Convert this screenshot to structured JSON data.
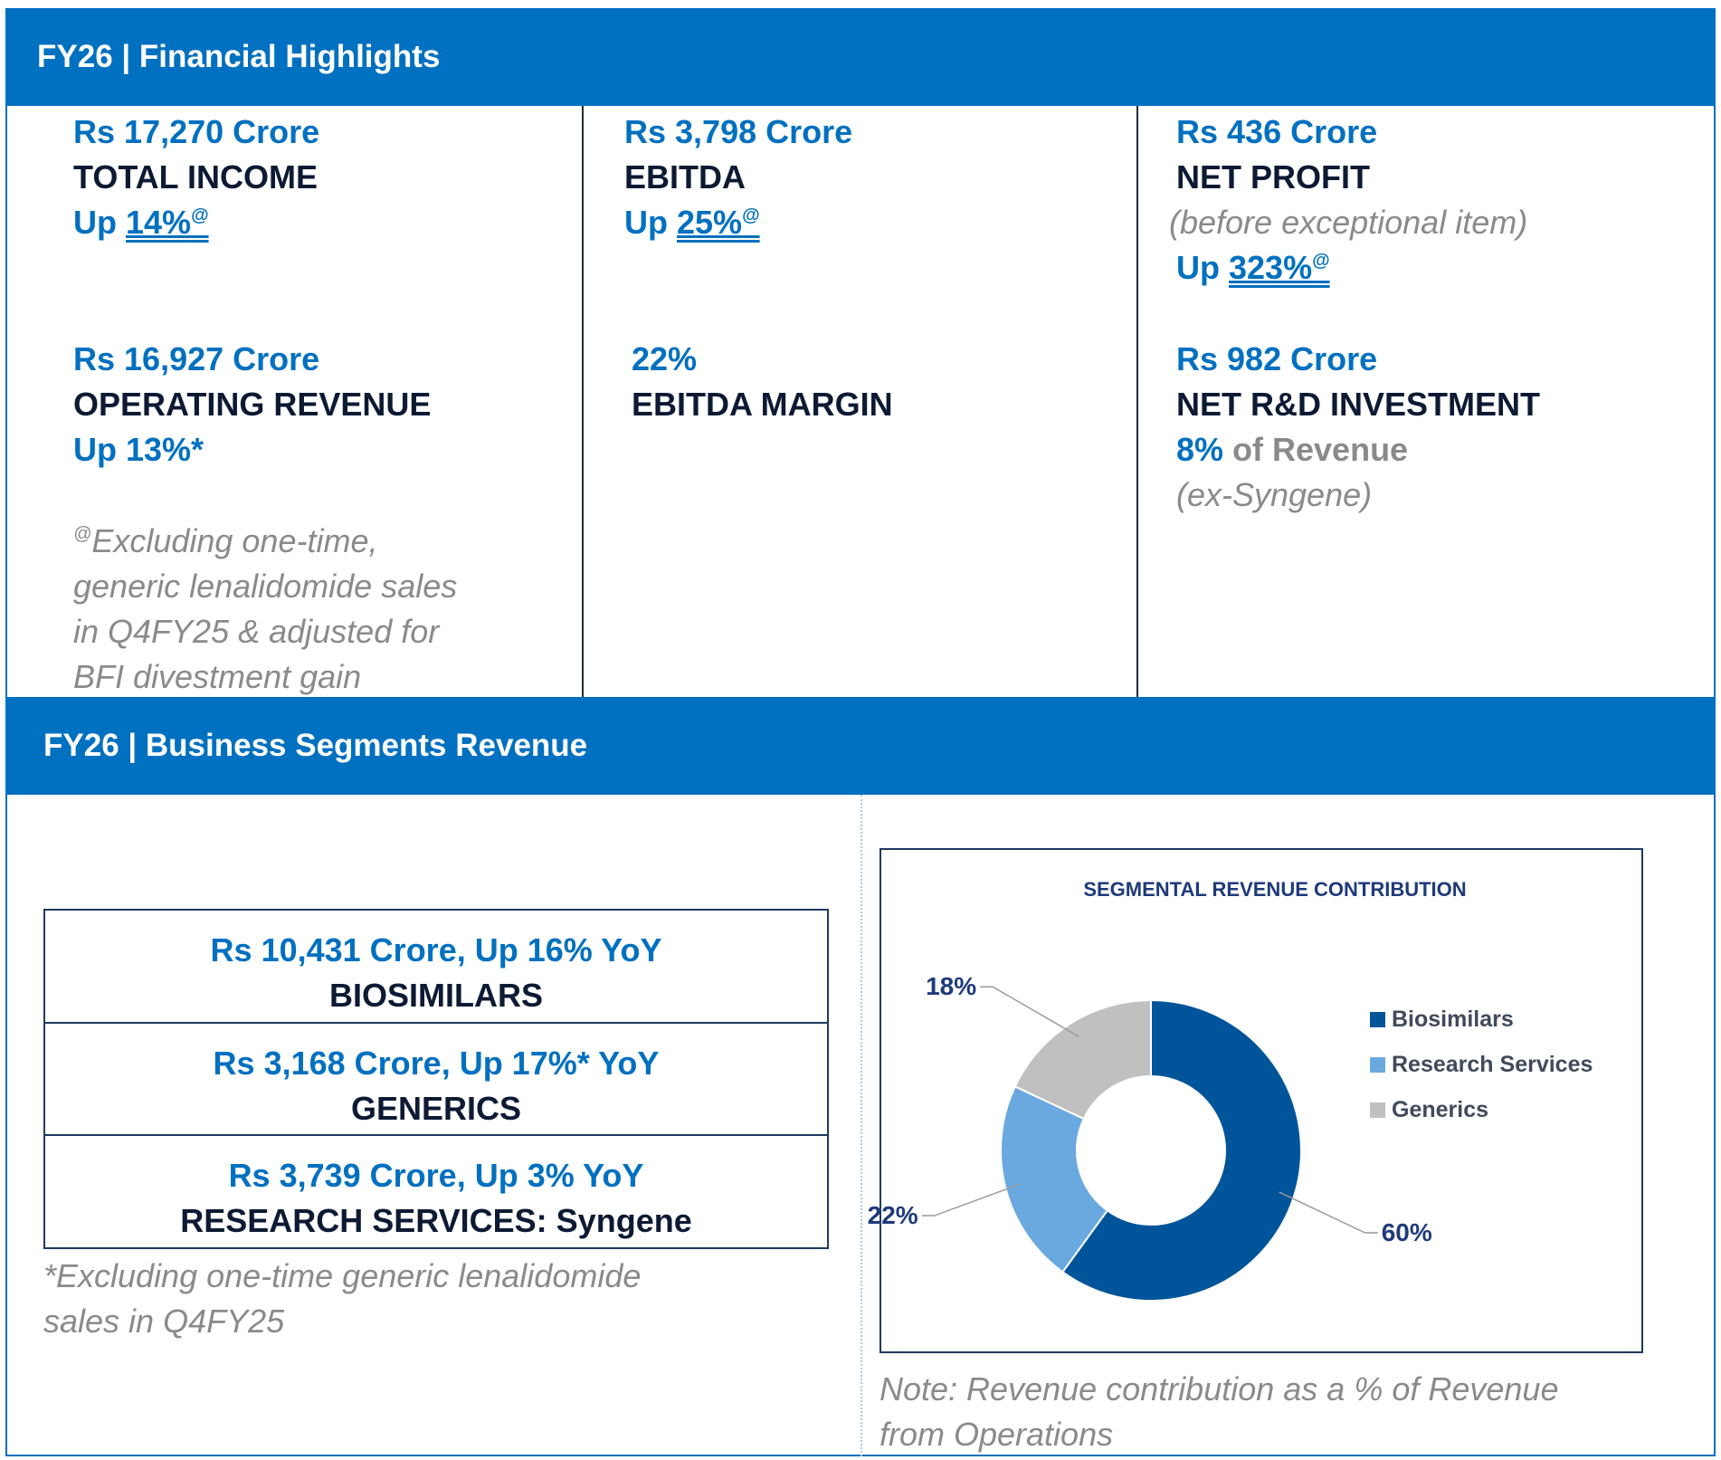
{
  "financial_highlights": {
    "header": "FY26 | Financial Highlights",
    "total_income": {
      "value": "Rs 17,270 Crore",
      "label": "TOTAL INCOME",
      "up_prefix": "Up ",
      "up_value": "14%",
      "up_mark": "@"
    },
    "ebitda": {
      "value": "Rs 3,798 Crore",
      "label": "EBITDA",
      "up_prefix": "Up ",
      "up_value": "25%",
      "up_mark": "@"
    },
    "net_profit": {
      "value": "Rs 436 Crore",
      "label": "NET PROFIT",
      "qualifier": "(before exceptional item)",
      "up_prefix": "Up ",
      "up_value": "323%",
      "up_mark": "@"
    },
    "operating_revenue": {
      "value": "Rs 16,927 Crore",
      "label": "OPERATING REVENUE",
      "up": "Up 13%*"
    },
    "ebitda_margin": {
      "value": "22%",
      "label": "EBITDA MARGIN"
    },
    "net_rd_investment": {
      "value": "Rs 982 Crore",
      "label": "NET R&D INVESTMENT",
      "pct": "8%",
      "pct_suffix": " of Revenue",
      "qualifier": "(ex-Syngene)"
    },
    "footnote": {
      "mark": "@",
      "lines": [
        "Excluding one-time,",
        "generic lenalidomide sales",
        "in Q4FY25 & adjusted for",
        "BFI divestment gain"
      ]
    }
  },
  "business_segments": {
    "header": "FY26 | Business Segments Revenue",
    "segments": [
      {
        "value": "Rs 10,431 Crore, Up 16% YoY",
        "name": "BIOSIMILARS"
      },
      {
        "value": "Rs 3,168 Crore, Up 17%* YoY",
        "name": "GENERICS"
      },
      {
        "value": "Rs 3,739 Crore, Up 3% YoY",
        "name": "RESEARCH SERVICES: Syngene"
      }
    ],
    "footnote_lines": [
      "*Excluding one-time generic lenalidomide",
      "sales in Q4FY25"
    ],
    "note_lines": [
      "Note: Revenue contribution as a % of Revenue",
      "from Operations"
    ]
  },
  "chart_data": {
    "type": "pie",
    "variant": "donut",
    "title": "SEGMENTAL REVENUE CONTRIBUTION",
    "categories": [
      "Biosimilars",
      "Research Services",
      "Generics"
    ],
    "values": [
      60,
      22,
      18
    ],
    "data_labels": [
      "60%",
      "22%",
      "18%"
    ],
    "colors": [
      "#00549a",
      "#6aa9e0",
      "#c0c0c0"
    ],
    "legend_position": "right"
  },
  "colors": {
    "brand_blue": "#0070c0",
    "dark_text": "#0d1a33",
    "grey_text": "#8a8a8a"
  }
}
